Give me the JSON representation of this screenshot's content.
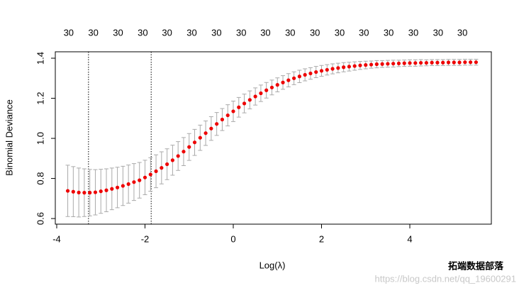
{
  "chart_data": {
    "type": "errorbar",
    "x_label": "Log(λ)",
    "y_label": "Binomial Deviance",
    "xlim": [
      -4.032,
      5.847
    ],
    "ylim": [
      0.572,
      1.432
    ],
    "xticks": [
      -4,
      -2,
      0,
      2,
      4
    ],
    "yticks": [
      0.6,
      0.8,
      {
        "value": 1,
        "label": "1.0"
      },
      1.2,
      1.4
    ],
    "top_ticks": [
      {
        "value": -3.73,
        "label": "30"
      },
      {
        "value": -3.17,
        "label": "30"
      },
      {
        "value": -2.61,
        "label": "30"
      },
      {
        "value": -2.05,
        "label": "30"
      },
      {
        "value": -1.5,
        "label": "30"
      },
      {
        "value": -0.94,
        "label": "30"
      },
      {
        "value": -0.38,
        "label": "30"
      },
      {
        "value": 0.18,
        "label": "30"
      },
      {
        "value": 0.73,
        "label": "30"
      },
      {
        "value": 1.29,
        "label": "30"
      },
      {
        "value": 1.85,
        "label": "30"
      },
      {
        "value": 2.41,
        "label": "30"
      },
      {
        "value": 2.96,
        "label": "30"
      },
      {
        "value": 3.52,
        "label": "30"
      },
      {
        "value": 4.08,
        "label": "30"
      },
      {
        "value": 4.64,
        "label": "30"
      },
      {
        "value": 5.19,
        "label": "30"
      }
    ],
    "vlines": [
      -3.28,
      -1.86
    ],
    "color": "#ee0000",
    "error_color": "#aaaaaa",
    "x": [
      -3.75,
      -3.625,
      -3.5,
      -3.375,
      -3.25,
      -3.125,
      -3,
      -2.875,
      -2.75,
      -2.625,
      -2.5,
      -2.375,
      -2.25,
      -2.125,
      -2,
      -1.875,
      -1.75,
      -1.625,
      -1.5,
      -1.375,
      -1.25,
      -1.125,
      -1,
      -0.875,
      -0.75,
      -0.625,
      -0.5,
      -0.375,
      -0.25,
      -0.125,
      0,
      0.125,
      0.25,
      0.375,
      0.5,
      0.625,
      0.75,
      0.875,
      1,
      1.125,
      1.25,
      1.375,
      1.5,
      1.625,
      1.75,
      1.875,
      2,
      2.125,
      2.25,
      2.375,
      2.5,
      2.625,
      2.75,
      2.875,
      3,
      3.125,
      3.25,
      3.375,
      3.5,
      3.625,
      3.75,
      3.875,
      4,
      4.125,
      4.25,
      4.375,
      4.5,
      4.625,
      4.75,
      4.875,
      5,
      5.125,
      5.25,
      5.375,
      5.5
    ],
    "values": [
      0.738,
      0.734,
      0.73,
      0.729,
      0.729,
      0.731,
      0.736,
      0.741,
      0.748,
      0.755,
      0.763,
      0.772,
      0.782,
      0.791,
      0.805,
      0.82,
      0.836,
      0.853,
      0.871,
      0.891,
      0.912,
      0.934,
      0.957,
      0.98,
      1.003,
      1.026,
      1.049,
      1.072,
      1.094,
      1.115,
      1.135,
      1.155,
      1.174,
      1.192,
      1.209,
      1.225,
      1.24,
      1.254,
      1.267,
      1.279,
      1.29,
      1.3,
      1.309,
      1.317,
      1.324,
      1.331,
      1.337,
      1.342,
      1.347,
      1.351,
      1.355,
      1.358,
      1.361,
      1.364,
      1.366,
      1.368,
      1.37,
      1.371,
      1.372,
      1.373,
      1.374,
      1.375,
      1.376,
      1.376,
      1.377,
      1.377,
      1.378,
      1.378,
      1.378,
      1.379,
      1.379,
      1.379,
      1.38,
      1.38,
      1.38
    ],
    "errors": [
      0.128,
      0.125,
      0.122,
      0.119,
      0.116,
      0.113,
      0.11,
      0.107,
      0.104,
      0.101,
      0.098,
      0.095,
      0.092,
      0.089,
      0.086,
      0.084,
      0.082,
      0.08,
      0.077,
      0.075,
      0.072,
      0.07,
      0.067,
      0.065,
      0.063,
      0.061,
      0.059,
      0.057,
      0.055,
      0.053,
      0.051,
      0.049,
      0.047,
      0.045,
      0.043,
      0.041,
      0.039,
      0.037,
      0.035,
      0.034,
      0.033,
      0.032,
      0.031,
      0.03,
      0.029,
      0.028,
      0.027,
      0.026,
      0.025,
      0.024,
      0.023,
      0.022,
      0.021,
      0.02,
      0.019,
      0.018,
      0.018,
      0.017,
      0.017,
      0.017,
      0.016,
      0.016,
      0.016,
      0.016,
      0.016,
      0.015,
      0.015,
      0.015,
      0.015,
      0.015,
      0.015,
      0.015,
      0.015,
      0.015,
      0.015
    ]
  },
  "watermark": {
    "brand": "拓端数据部落",
    "url": "https://blog.csdn.net/qq_19600291"
  }
}
